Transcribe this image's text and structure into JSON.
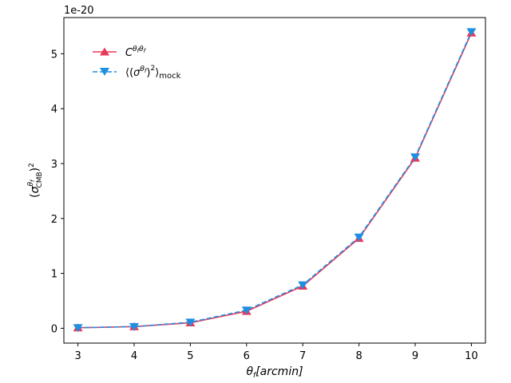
{
  "chart_data": {
    "type": "line",
    "title": "",
    "xlabel": "θf[arcmin]",
    "ylabel": "(σCMB^θf)²",
    "y_offset_text": "1e-20",
    "xlim": [
      2.75,
      10.25
    ],
    "ylim": [
      -0.27,
      5.66
    ],
    "x_ticks": [
      3,
      4,
      5,
      6,
      7,
      8,
      9,
      10
    ],
    "y_ticks": [
      0,
      1,
      2,
      3,
      4,
      5
    ],
    "x": [
      3,
      4,
      5,
      6,
      7,
      8,
      9,
      10
    ],
    "series": [
      {
        "name": "C^θfθf",
        "color": "#e8395a",
        "style": "solid",
        "marker": "triangle-up",
        "values": [
          0.01,
          0.03,
          0.1,
          0.31,
          0.77,
          1.64,
          3.1,
          5.38
        ]
      },
      {
        "name": "⟨(σ^θf)²⟩mock",
        "color": "#1f8fe0",
        "style": "dashed",
        "marker": "triangle-down",
        "values": [
          0.01,
          0.03,
          0.11,
          0.33,
          0.79,
          1.66,
          3.12,
          5.4
        ]
      }
    ],
    "grid": false,
    "legend_position": "top-left"
  }
}
